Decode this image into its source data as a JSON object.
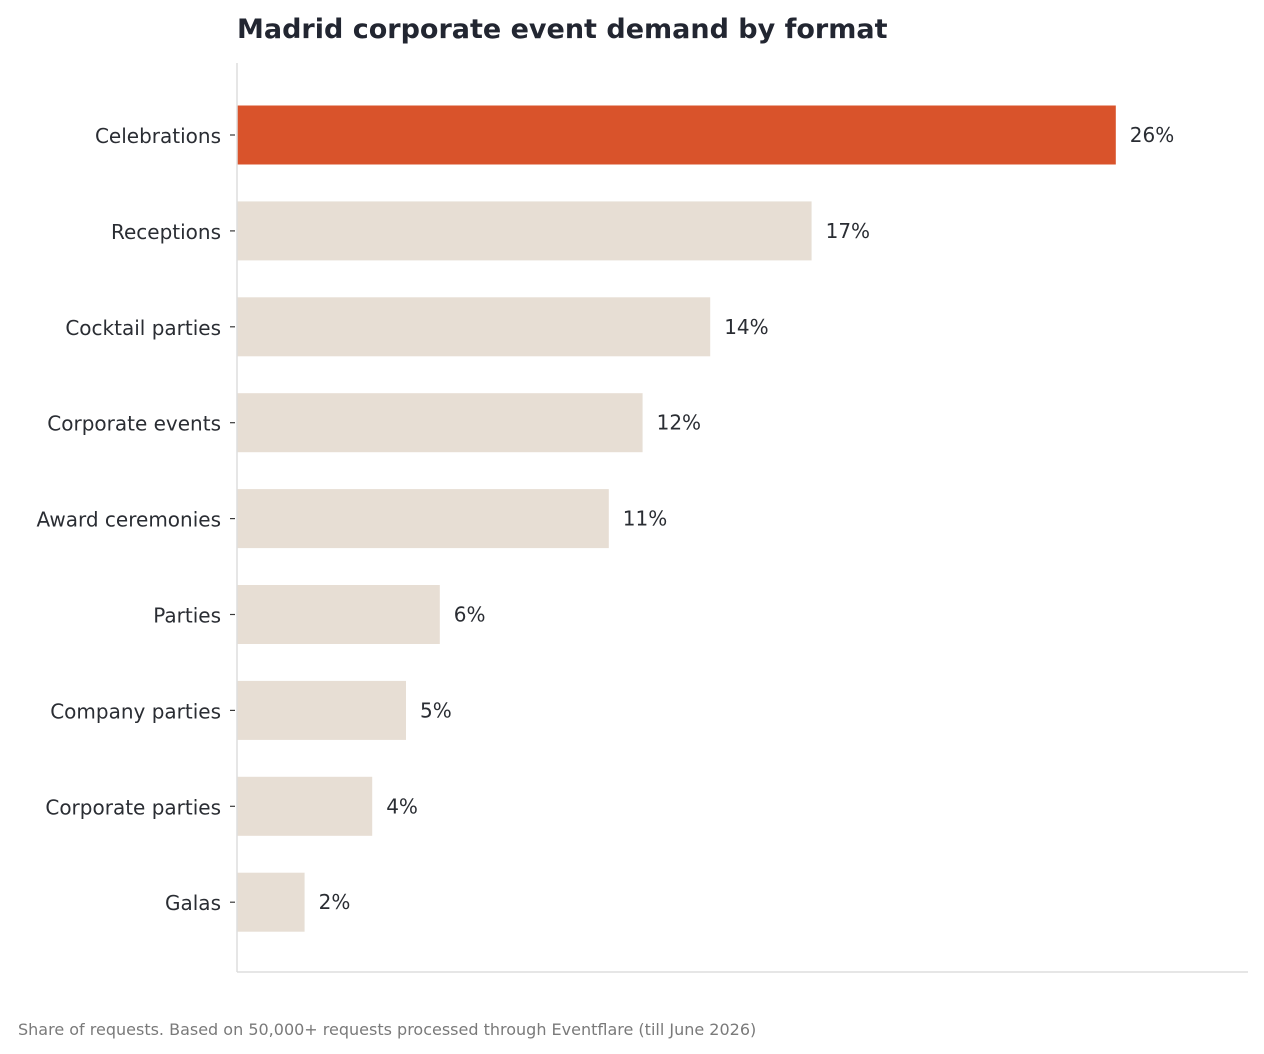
{
  "chart_data": {
    "type": "bar",
    "orientation": "horizontal",
    "title": "Madrid corporate event demand by format",
    "categories": [
      "Celebrations",
      "Receptions",
      "Cocktail parties",
      "Corporate events",
      "Award ceremonies",
      "Parties",
      "Company parties",
      "Corporate parties",
      "Galas"
    ],
    "values": [
      26,
      17,
      14,
      12,
      11,
      6,
      5,
      4,
      2
    ],
    "value_labels": [
      "26%",
      "17%",
      "14%",
      "12%",
      "11%",
      "6%",
      "5%",
      "4%",
      "2%"
    ],
    "unit": "%",
    "xlim": [
      0,
      30
    ],
    "grid": false,
    "legend": "none",
    "highlight_index": 0,
    "colors": {
      "highlight": "#d9532b",
      "default": "#e7ded4",
      "axis": "#dddddd",
      "text": "#2a2d33"
    },
    "footnote": "Share of requests. Based on 50,000+ requests processed through Eventflare (till June 2026)"
  }
}
